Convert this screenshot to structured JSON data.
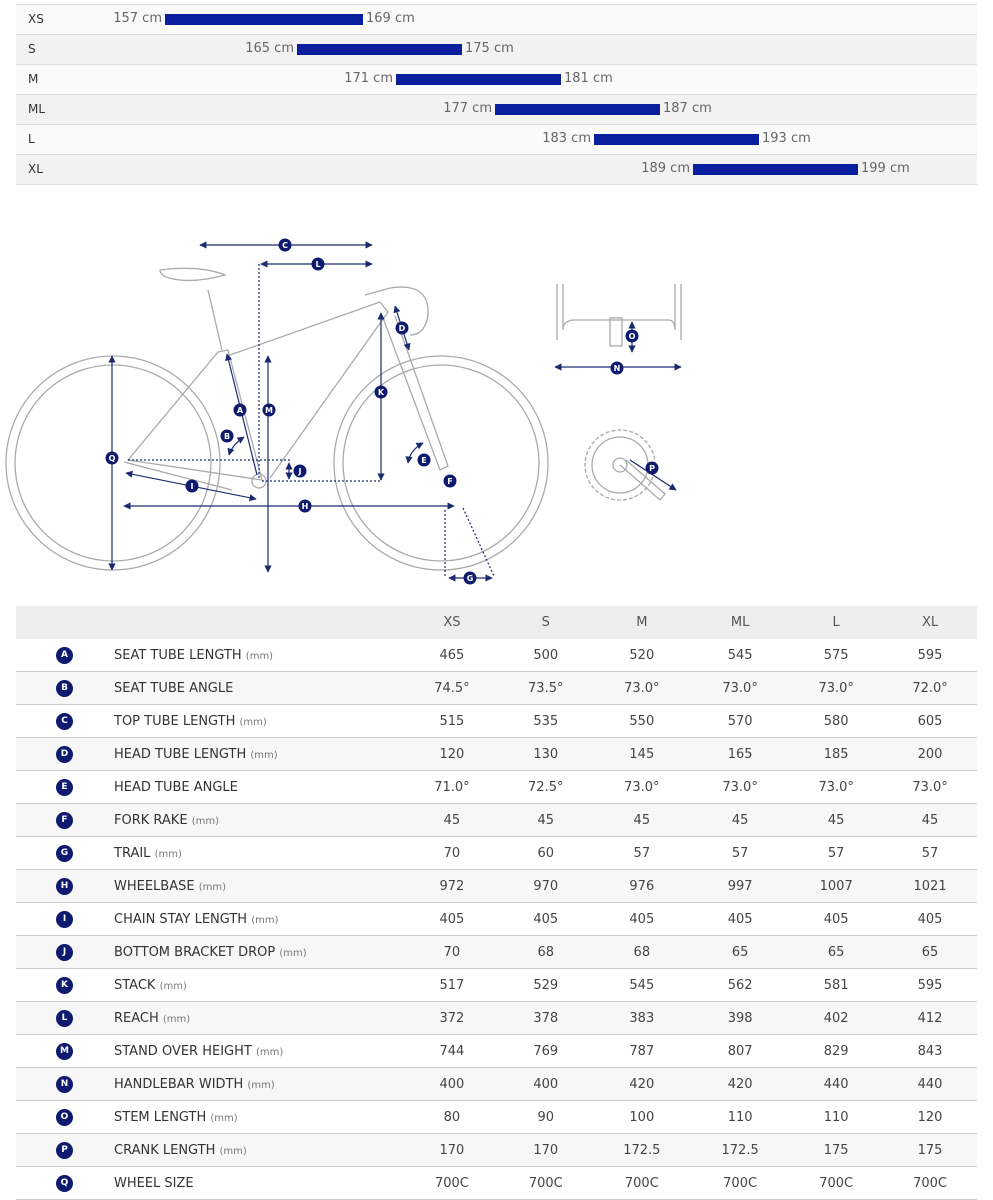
{
  "size_chart": {
    "rows": [
      {
        "size": "XS",
        "min": 157,
        "max": 169,
        "min_label": "157 cm",
        "max_label": "169 cm"
      },
      {
        "size": "S",
        "min": 165,
        "max": 175,
        "min_label": "165 cm",
        "max_label": "175 cm"
      },
      {
        "size": "M",
        "min": 171,
        "max": 181,
        "min_label": "171 cm",
        "max_label": "181 cm"
      },
      {
        "size": "ML",
        "min": 177,
        "max": 187,
        "min_label": "177 cm",
        "max_label": "187 cm"
      },
      {
        "size": "L",
        "min": 183,
        "max": 193,
        "min_label": "183 cm",
        "max_label": "193 cm"
      },
      {
        "size": "XL",
        "min": 189,
        "max": 199,
        "min_label": "189 cm",
        "max_label": "199 cm"
      }
    ],
    "bar_color": "#0a1f9e"
  },
  "geometry": {
    "columns": [
      "XS",
      "S",
      "M",
      "ML",
      "L",
      "XL"
    ],
    "rows": [
      {
        "letter": "A",
        "label": "SEAT TUBE LENGTH",
        "unit": "(mm)",
        "values": [
          "465",
          "500",
          "520",
          "545",
          "575",
          "595"
        ]
      },
      {
        "letter": "B",
        "label": "SEAT TUBE ANGLE",
        "unit": "",
        "values": [
          "74.5°",
          "73.5°",
          "73.0°",
          "73.0°",
          "73.0°",
          "72.0°"
        ]
      },
      {
        "letter": "C",
        "label": "TOP TUBE LENGTH",
        "unit": "(mm)",
        "values": [
          "515",
          "535",
          "550",
          "570",
          "580",
          "605"
        ]
      },
      {
        "letter": "D",
        "label": "HEAD TUBE LENGTH",
        "unit": "(mm)",
        "values": [
          "120",
          "130",
          "145",
          "165",
          "185",
          "200"
        ]
      },
      {
        "letter": "E",
        "label": "HEAD TUBE ANGLE",
        "unit": "",
        "values": [
          "71.0°",
          "72.5°",
          "73.0°",
          "73.0°",
          "73.0°",
          "73.0°"
        ]
      },
      {
        "letter": "F",
        "label": "FORK RAKE",
        "unit": "(mm)",
        "values": [
          "45",
          "45",
          "45",
          "45",
          "45",
          "45"
        ]
      },
      {
        "letter": "G",
        "label": "TRAIL",
        "unit": "(mm)",
        "values": [
          "70",
          "60",
          "57",
          "57",
          "57",
          "57"
        ]
      },
      {
        "letter": "H",
        "label": "WHEELBASE",
        "unit": "(mm)",
        "values": [
          "972",
          "970",
          "976",
          "997",
          "1007",
          "1021"
        ]
      },
      {
        "letter": "I",
        "label": "CHAIN STAY LENGTH",
        "unit": "(mm)",
        "values": [
          "405",
          "405",
          "405",
          "405",
          "405",
          "405"
        ]
      },
      {
        "letter": "J",
        "label": "BOTTOM BRACKET DROP",
        "unit": "(mm)",
        "values": [
          "70",
          "68",
          "68",
          "65",
          "65",
          "65"
        ]
      },
      {
        "letter": "K",
        "label": "STACK",
        "unit": "(mm)",
        "values": [
          "517",
          "529",
          "545",
          "562",
          "581",
          "595"
        ]
      },
      {
        "letter": "L",
        "label": "REACH",
        "unit": "(mm)",
        "values": [
          "372",
          "378",
          "383",
          "398",
          "402",
          "412"
        ]
      },
      {
        "letter": "M",
        "label": "STAND OVER HEIGHT",
        "unit": "(mm)",
        "values": [
          "744",
          "769",
          "787",
          "807",
          "829",
          "843"
        ]
      },
      {
        "letter": "N",
        "label": "HANDLEBAR WIDTH",
        "unit": "(mm)",
        "values": [
          "400",
          "400",
          "420",
          "420",
          "440",
          "440"
        ]
      },
      {
        "letter": "O",
        "label": "STEM LENGTH",
        "unit": "(mm)",
        "values": [
          "80",
          "90",
          "100",
          "110",
          "110",
          "120"
        ]
      },
      {
        "letter": "P",
        "label": "CRANK LENGTH",
        "unit": "(mm)",
        "values": [
          "170",
          "170",
          "172.5",
          "172.5",
          "175",
          "175"
        ]
      },
      {
        "letter": "Q",
        "label": "WHEEL SIZE",
        "unit": "",
        "values": [
          "700C",
          "700C",
          "700C",
          "700C",
          "700C",
          "700C"
        ]
      }
    ]
  },
  "colors": {
    "badge": "#0d1a6e",
    "dimension": "#1a2a6e",
    "outline": "#999999"
  }
}
